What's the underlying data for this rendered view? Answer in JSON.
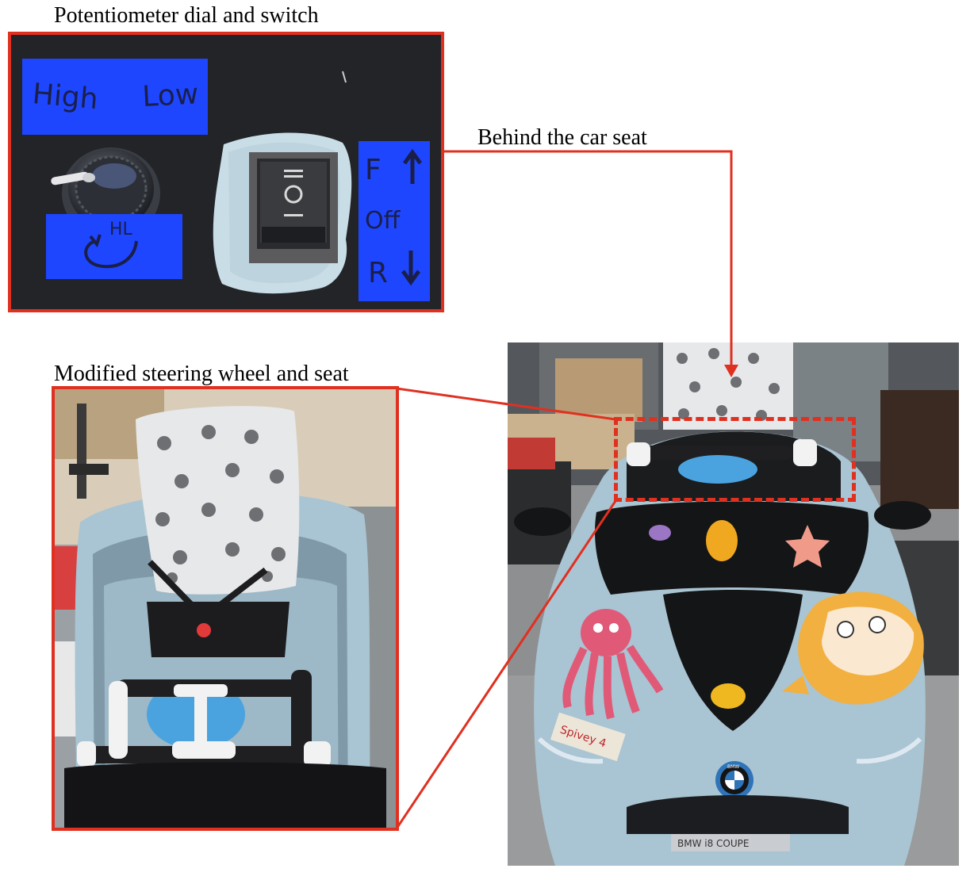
{
  "captions": {
    "potentiometer": "Potentiometer dial and switch",
    "behind_seat": "Behind the car seat",
    "steering": "Modified steering wheel and seat"
  },
  "photo_labels": {
    "high": "High",
    "low": "Low",
    "dial_marks": "HL",
    "switch_forward": "F",
    "switch_off": "Off",
    "switch_reverse": "R",
    "bmw_badge": "BMW",
    "plate": "BMW i8 COUPE",
    "tape_note": "Spivey 4"
  },
  "colors": {
    "annotation_red": "#e03020",
    "label_tape_blue": "#1e46ff",
    "car_body": "#a9c4d2"
  }
}
